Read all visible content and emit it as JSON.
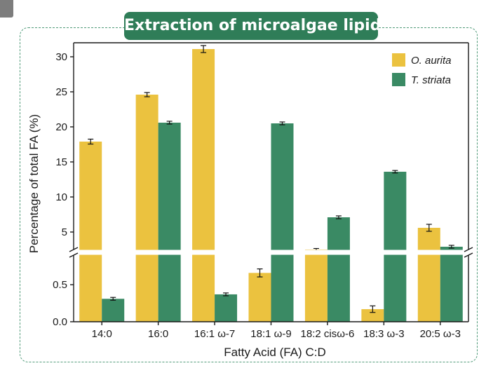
{
  "header": {
    "title": "Extraction of microalgae lipids"
  },
  "colors": {
    "o_aurita": "#ebc23f",
    "t_striata": "#3a8a64",
    "frame": "#4f9a78",
    "badge": "#2f7d58"
  },
  "chart_data": {
    "type": "bar",
    "title": "Extraction of microalgae lipids",
    "xlabel": "Fatty Acid (FA) C:D",
    "ylabel": "Percentage of total FA (%)",
    "categories": [
      "14:0",
      "16:0",
      "16:1 ω-7",
      "18:1 ω-9",
      "18:2 cisω-6",
      "18:3 ω-3",
      "20:5 ω-3"
    ],
    "series": [
      {
        "name": "O. aurita",
        "values": [
          17.9,
          24.6,
          31.1,
          0.66,
          0.94,
          0.17,
          5.6
        ],
        "errors": [
          0.2,
          0.15,
          0.35,
          0.04,
          0.01,
          0.03,
          0.35
        ]
      },
      {
        "name": "T. striata",
        "values": [
          0.31,
          20.6,
          0.37,
          20.5,
          7.1,
          13.6,
          2.9
        ],
        "errors": [
          0.005,
          0.05,
          0.005,
          0.05,
          0.05,
          0.03,
          0.05
        ]
      }
    ],
    "y_axis_break": {
      "lower_range": [
        0,
        0.9
      ],
      "lower_ticks": [
        "0.0",
        "0.5"
      ],
      "upper_range": [
        2.5,
        32
      ],
      "upper_ticks": [
        "5",
        "10",
        "15",
        "20",
        "25",
        "30"
      ]
    },
    "legend": {
      "position": "top-right"
    },
    "grid": false
  }
}
